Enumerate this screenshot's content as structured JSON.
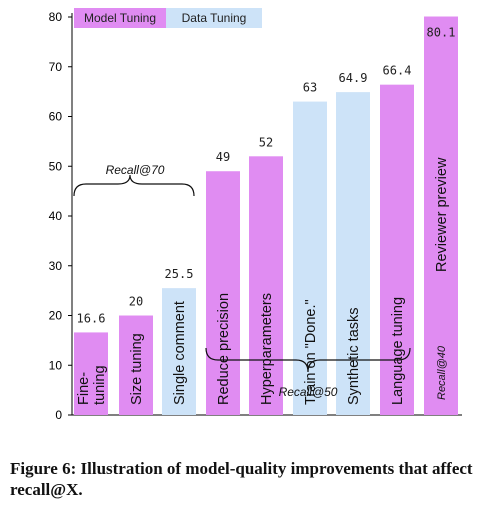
{
  "chart_data": {
    "type": "bar",
    "categories": [
      "Fine-tuning",
      "Size tuning",
      "Single comment",
      "Reduce precision",
      "Hyperparameters",
      "Train on \"Done.\"",
      "Synthetic tasks",
      "Language tuning",
      "Reviewer preview"
    ],
    "category_lines": [
      [
        "Fine-",
        "tuning"
      ],
      [
        "Size tuning"
      ],
      [
        "Single comment"
      ],
      [
        "Reduce precision"
      ],
      [
        "Hyperparameters"
      ],
      [
        "Train on \"Done.\""
      ],
      [
        "Synthetic tasks"
      ],
      [
        "Language tuning"
      ],
      [
        "Reviewer preview"
      ]
    ],
    "values": [
      16.6,
      20,
      25.5,
      49,
      52,
      63,
      64.9,
      66.4,
      80.1
    ],
    "value_labels": [
      "16.6",
      "20",
      "25.5",
      "49",
      "52",
      "63",
      "64.9",
      "66.4",
      "80.1"
    ],
    "groups": [
      "Model Tuning",
      "Model Tuning",
      "Data Tuning",
      "Model Tuning",
      "Model Tuning",
      "Data Tuning",
      "Data Tuning",
      "Model Tuning",
      "Model Tuning"
    ],
    "legend": [
      {
        "name": "Model Tuning",
        "color": "#e08cf2"
      },
      {
        "name": "Data Tuning",
        "color": "#cde3f8"
      }
    ],
    "ylim": [
      0,
      80
    ],
    "yticks": [
      0,
      10,
      20,
      30,
      40,
      50,
      60,
      70,
      80
    ],
    "annotations": {
      "recall70": "Recall@70",
      "recall50": "Recall@50",
      "recall40": "Recall@40"
    },
    "grid": false,
    "legend_position": "top-left"
  },
  "caption": "Figure 6: Illustration of model-quality improvements that affect recall@X."
}
